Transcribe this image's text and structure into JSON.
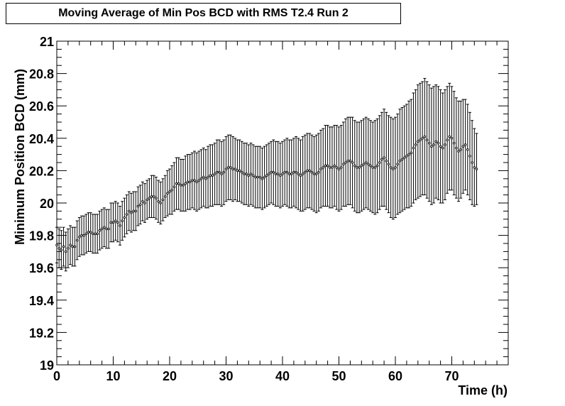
{
  "chart_data": {
    "type": "scatter",
    "title": "Moving Average of Min Pos BCD with RMS T2.4 Run 2",
    "xlabel": "Time (h)",
    "ylabel": "Minimum Position BCD (mm)",
    "xlim": [
      0,
      80
    ],
    "ylim": [
      19,
      21
    ],
    "x_ticks": [
      0,
      10,
      20,
      30,
      40,
      50,
      60,
      70
    ],
    "y_ticks": [
      19,
      19.2,
      19.4,
      19.6,
      19.8,
      20,
      20.2,
      20.4,
      20.6,
      20.8,
      21
    ],
    "x_tick_labels": [
      "0",
      "10",
      "20",
      "30",
      "40",
      "50",
      "60",
      "70"
    ],
    "y_tick_labels": [
      "19",
      "19.2",
      "19.4",
      "19.6",
      "19.8",
      "20",
      "20.2",
      "20.4",
      "20.6",
      "20.8",
      "21"
    ],
    "grid": false,
    "legend": "none",
    "series": [
      {
        "marker_color": "#000000",
        "x_start": 0.0,
        "x_step": 0.4,
        "values": [
          19.74,
          19.72,
          19.71,
          19.73,
          19.7,
          19.72,
          19.74,
          19.73,
          19.73,
          19.77,
          19.79,
          19.8,
          19.8,
          19.81,
          19.82,
          19.82,
          19.81,
          19.81,
          19.81,
          19.83,
          19.84,
          19.85,
          19.84,
          19.84,
          19.88,
          19.88,
          19.89,
          19.88,
          19.86,
          19.89,
          19.91,
          19.93,
          19.95,
          19.94,
          19.95,
          19.95,
          19.98,
          19.99,
          20.01,
          20.0,
          20.02,
          20.03,
          20.04,
          20.04,
          20.03,
          20.01,
          20.0,
          20.02,
          20.04,
          20.06,
          20.07,
          20.08,
          20.1,
          20.12,
          20.12,
          20.11,
          20.11,
          20.12,
          20.13,
          20.13,
          20.14,
          20.14,
          20.13,
          20.14,
          20.15,
          20.16,
          20.15,
          20.16,
          20.17,
          20.17,
          20.18,
          20.19,
          20.19,
          20.18,
          20.19,
          20.21,
          20.22,
          20.22,
          20.21,
          20.21,
          20.2,
          20.2,
          20.19,
          20.18,
          20.18,
          20.17,
          20.18,
          20.17,
          20.16,
          20.16,
          20.16,
          20.15,
          20.16,
          20.17,
          20.18,
          20.19,
          20.19,
          20.18,
          20.18,
          20.17,
          20.18,
          20.19,
          20.19,
          20.18,
          20.18,
          20.19,
          20.19,
          20.18,
          20.17,
          20.18,
          20.19,
          20.2,
          20.2,
          20.19,
          20.18,
          20.18,
          20.19,
          20.21,
          20.22,
          20.23,
          20.23,
          20.22,
          20.22,
          20.23,
          20.22,
          20.21,
          20.22,
          20.24,
          20.25,
          20.26,
          20.26,
          20.25,
          20.23,
          20.22,
          20.22,
          20.23,
          20.24,
          20.25,
          20.24,
          20.23,
          20.22,
          20.22,
          20.23,
          20.25,
          20.27,
          20.28,
          20.26,
          20.24,
          20.22,
          20.21,
          20.22,
          20.24,
          20.26,
          20.27,
          20.28,
          20.29,
          20.3,
          20.31,
          20.34,
          20.36,
          20.38,
          20.39,
          20.4,
          20.41,
          20.39,
          20.37,
          20.35,
          20.36,
          20.38,
          20.37,
          20.35,
          20.34,
          20.36,
          20.39,
          20.41,
          20.4,
          20.37,
          20.34,
          20.32,
          20.33,
          20.35,
          20.36,
          20.33,
          20.29,
          20.25,
          20.22,
          20.21
        ],
        "errors": [
          0.11,
          0.12,
          0.12,
          0.12,
          0.12,
          0.12,
          0.12,
          0.12,
          0.12,
          0.12,
          0.12,
          0.12,
          0.12,
          0.12,
          0.12,
          0.12,
          0.12,
          0.12,
          0.12,
          0.12,
          0.12,
          0.12,
          0.12,
          0.12,
          0.12,
          0.12,
          0.12,
          0.12,
          0.12,
          0.12,
          0.12,
          0.12,
          0.12,
          0.12,
          0.12,
          0.12,
          0.12,
          0.12,
          0.12,
          0.12,
          0.12,
          0.12,
          0.13,
          0.13,
          0.13,
          0.13,
          0.13,
          0.13,
          0.13,
          0.14,
          0.14,
          0.15,
          0.15,
          0.16,
          0.16,
          0.16,
          0.16,
          0.17,
          0.17,
          0.17,
          0.17,
          0.18,
          0.18,
          0.18,
          0.18,
          0.18,
          0.18,
          0.19,
          0.19,
          0.19,
          0.19,
          0.2,
          0.2,
          0.2,
          0.2,
          0.2,
          0.2,
          0.2,
          0.2,
          0.19,
          0.19,
          0.19,
          0.19,
          0.19,
          0.19,
          0.19,
          0.19,
          0.19,
          0.19,
          0.19,
          0.19,
          0.19,
          0.19,
          0.19,
          0.19,
          0.19,
          0.2,
          0.2,
          0.2,
          0.2,
          0.2,
          0.2,
          0.21,
          0.21,
          0.21,
          0.21,
          0.22,
          0.22,
          0.22,
          0.23,
          0.23,
          0.23,
          0.23,
          0.23,
          0.23,
          0.24,
          0.24,
          0.24,
          0.24,
          0.25,
          0.25,
          0.25,
          0.25,
          0.25,
          0.26,
          0.26,
          0.26,
          0.26,
          0.27,
          0.27,
          0.27,
          0.28,
          0.28,
          0.28,
          0.28,
          0.28,
          0.28,
          0.28,
          0.28,
          0.28,
          0.28,
          0.29,
          0.29,
          0.29,
          0.29,
          0.3,
          0.3,
          0.3,
          0.31,
          0.31,
          0.31,
          0.31,
          0.32,
          0.32,
          0.32,
          0.32,
          0.33,
          0.33,
          0.34,
          0.34,
          0.35,
          0.35,
          0.35,
          0.36,
          0.36,
          0.36,
          0.36,
          0.36,
          0.35,
          0.35,
          0.35,
          0.34,
          0.34,
          0.33,
          0.33,
          0.32,
          0.32,
          0.31,
          0.31,
          0.3,
          0.29,
          0.28,
          0.28,
          0.27,
          0.26,
          0.24,
          0.22
        ]
      }
    ]
  }
}
